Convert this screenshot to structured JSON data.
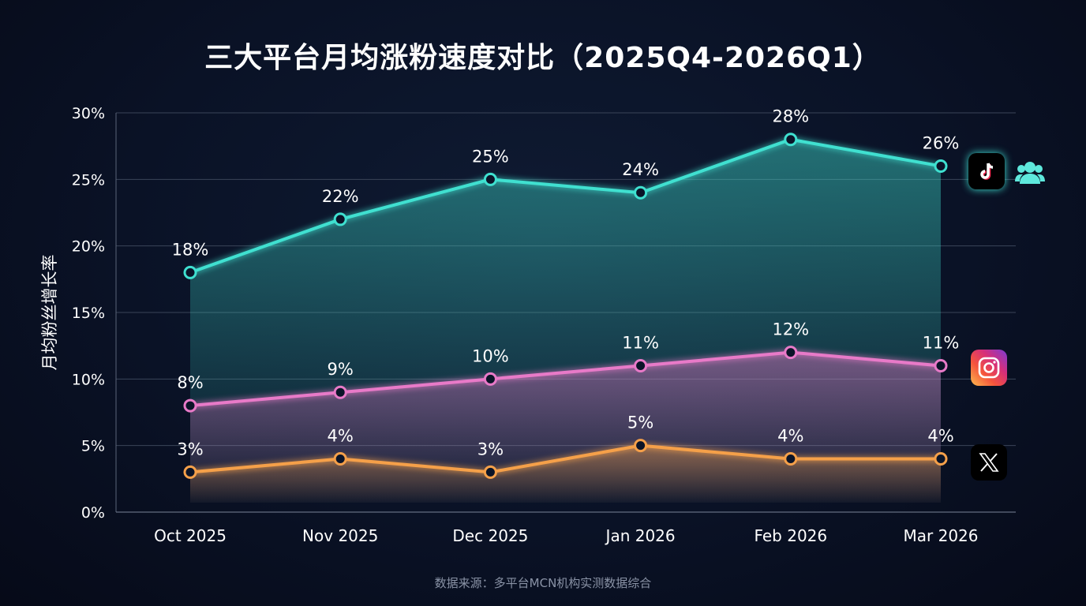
{
  "chart_data": {
    "type": "line",
    "title": "三大平台月均涨粉速度对比（2025Q4-2026Q1）",
    "ylabel": "月均粉丝增长率",
    "xlabel": "",
    "categories": [
      "Oct 2025",
      "Nov 2025",
      "Dec 2025",
      "Jan 2026",
      "Feb 2026",
      "Mar 2026"
    ],
    "ylim": [
      0,
      30
    ],
    "yticks": [
      "0%",
      "5%",
      "10%",
      "15%",
      "20%",
      "25%",
      "30%"
    ],
    "grid": true,
    "series": [
      {
        "values": [
          18,
          22,
          25,
          24,
          28,
          26
        ],
        "labels": [
          "18%",
          "22%",
          "25%",
          "24%",
          "28%",
          "26%"
        ],
        "color": "#3fe0d0",
        "icon": "tiktok-logo-icon",
        "extra_icon": "users-icon"
      },
      {
        "values": [
          8,
          9,
          10,
          11,
          12,
          11
        ],
        "labels": [
          "8%",
          "9%",
          "10%",
          "11%",
          "12%",
          "11%"
        ],
        "color": "#e87ac8",
        "icon": "instagram-logo-icon"
      },
      {
        "values": [
          3,
          4,
          3,
          5,
          4,
          4
        ],
        "labels": [
          "3%",
          "4%",
          "3%",
          "5%",
          "4%",
          "4%"
        ],
        "color": "#f5a04a",
        "icon": "x-logo-icon"
      }
    ],
    "source": "数据来源：多平台MCN机构实测数据综合"
  }
}
